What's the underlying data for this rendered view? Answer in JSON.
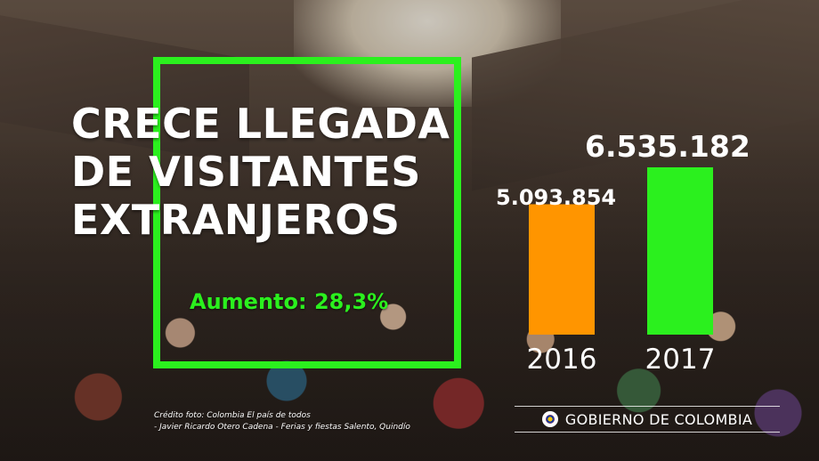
{
  "headline": {
    "lines": [
      "CRECE LLEGADA",
      "DE VISITANTES",
      "EXTRANJEROS"
    ]
  },
  "increase_text": "Aumento: 28,3%",
  "colors": {
    "frame": "#2bf01e",
    "bar_2016": "#ff9500",
    "bar_2017": "#2bf01e"
  },
  "chart_data": {
    "type": "bar",
    "categories": [
      "2016",
      "2017"
    ],
    "values": [
      5093854,
      6535182
    ],
    "value_labels": [
      "5.093.854",
      "6.535.182"
    ],
    "title": "",
    "xlabel": "",
    "ylabel": "",
    "ylim": [
      0,
      8090000
    ],
    "grid": false
  },
  "credit": {
    "line1": "Crédito foto: Colombia El país de todos",
    "line2": "- Javier Ricardo Otero Cadena - Ferias y fiestas Salento, Quindío"
  },
  "logo": {
    "text": "GOBIERNO DE COLOMBIA",
    "icon": "colombia-seal-icon"
  }
}
